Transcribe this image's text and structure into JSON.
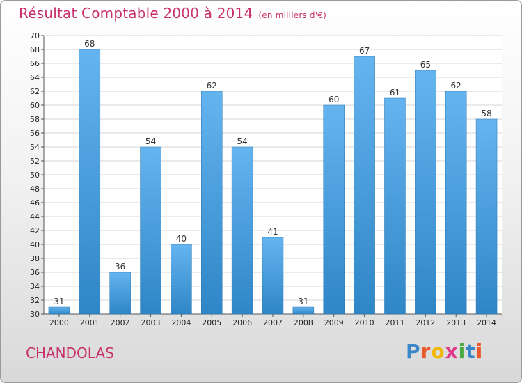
{
  "header": {
    "title": "Résultat Comptable 2000 à 2014",
    "subtitle": "(en milliers d'€)"
  },
  "footer": {
    "commune": "CHANDOLAS",
    "logo_letters": [
      "P",
      "r",
      "o",
      "x",
      "i",
      "t",
      "i"
    ],
    "logo_colors": [
      "#3a86c8",
      "#e85a2a",
      "#f2b705",
      "#e03a8c",
      "#4aa83c",
      "#3a86c8",
      "#e85a2a"
    ]
  },
  "colors": {
    "bar_light": "#64b4ef",
    "bar_dark": "#2f86c6",
    "title": "#c8316b",
    "grid": "#d6d6d6"
  },
  "chart_data": {
    "type": "bar",
    "title": "Résultat Comptable 2000 à 2014",
    "subtitle": "(en milliers d'€)",
    "categories": [
      "2000",
      "2001",
      "2002",
      "2003",
      "2004",
      "2005",
      "2006",
      "2007",
      "2008",
      "2009",
      "2010",
      "2011",
      "2012",
      "2013",
      "2014"
    ],
    "values": [
      31,
      68,
      36,
      54,
      40,
      62,
      54,
      41,
      31,
      60,
      67,
      61,
      65,
      62,
      58
    ],
    "ylim": [
      30,
      70
    ],
    "yticks": [
      30,
      32,
      34,
      36,
      38,
      40,
      42,
      44,
      46,
      48,
      50,
      52,
      54,
      56,
      58,
      60,
      62,
      64,
      66,
      68,
      70
    ],
    "grid": true,
    "xlabel": "",
    "ylabel": ""
  }
}
